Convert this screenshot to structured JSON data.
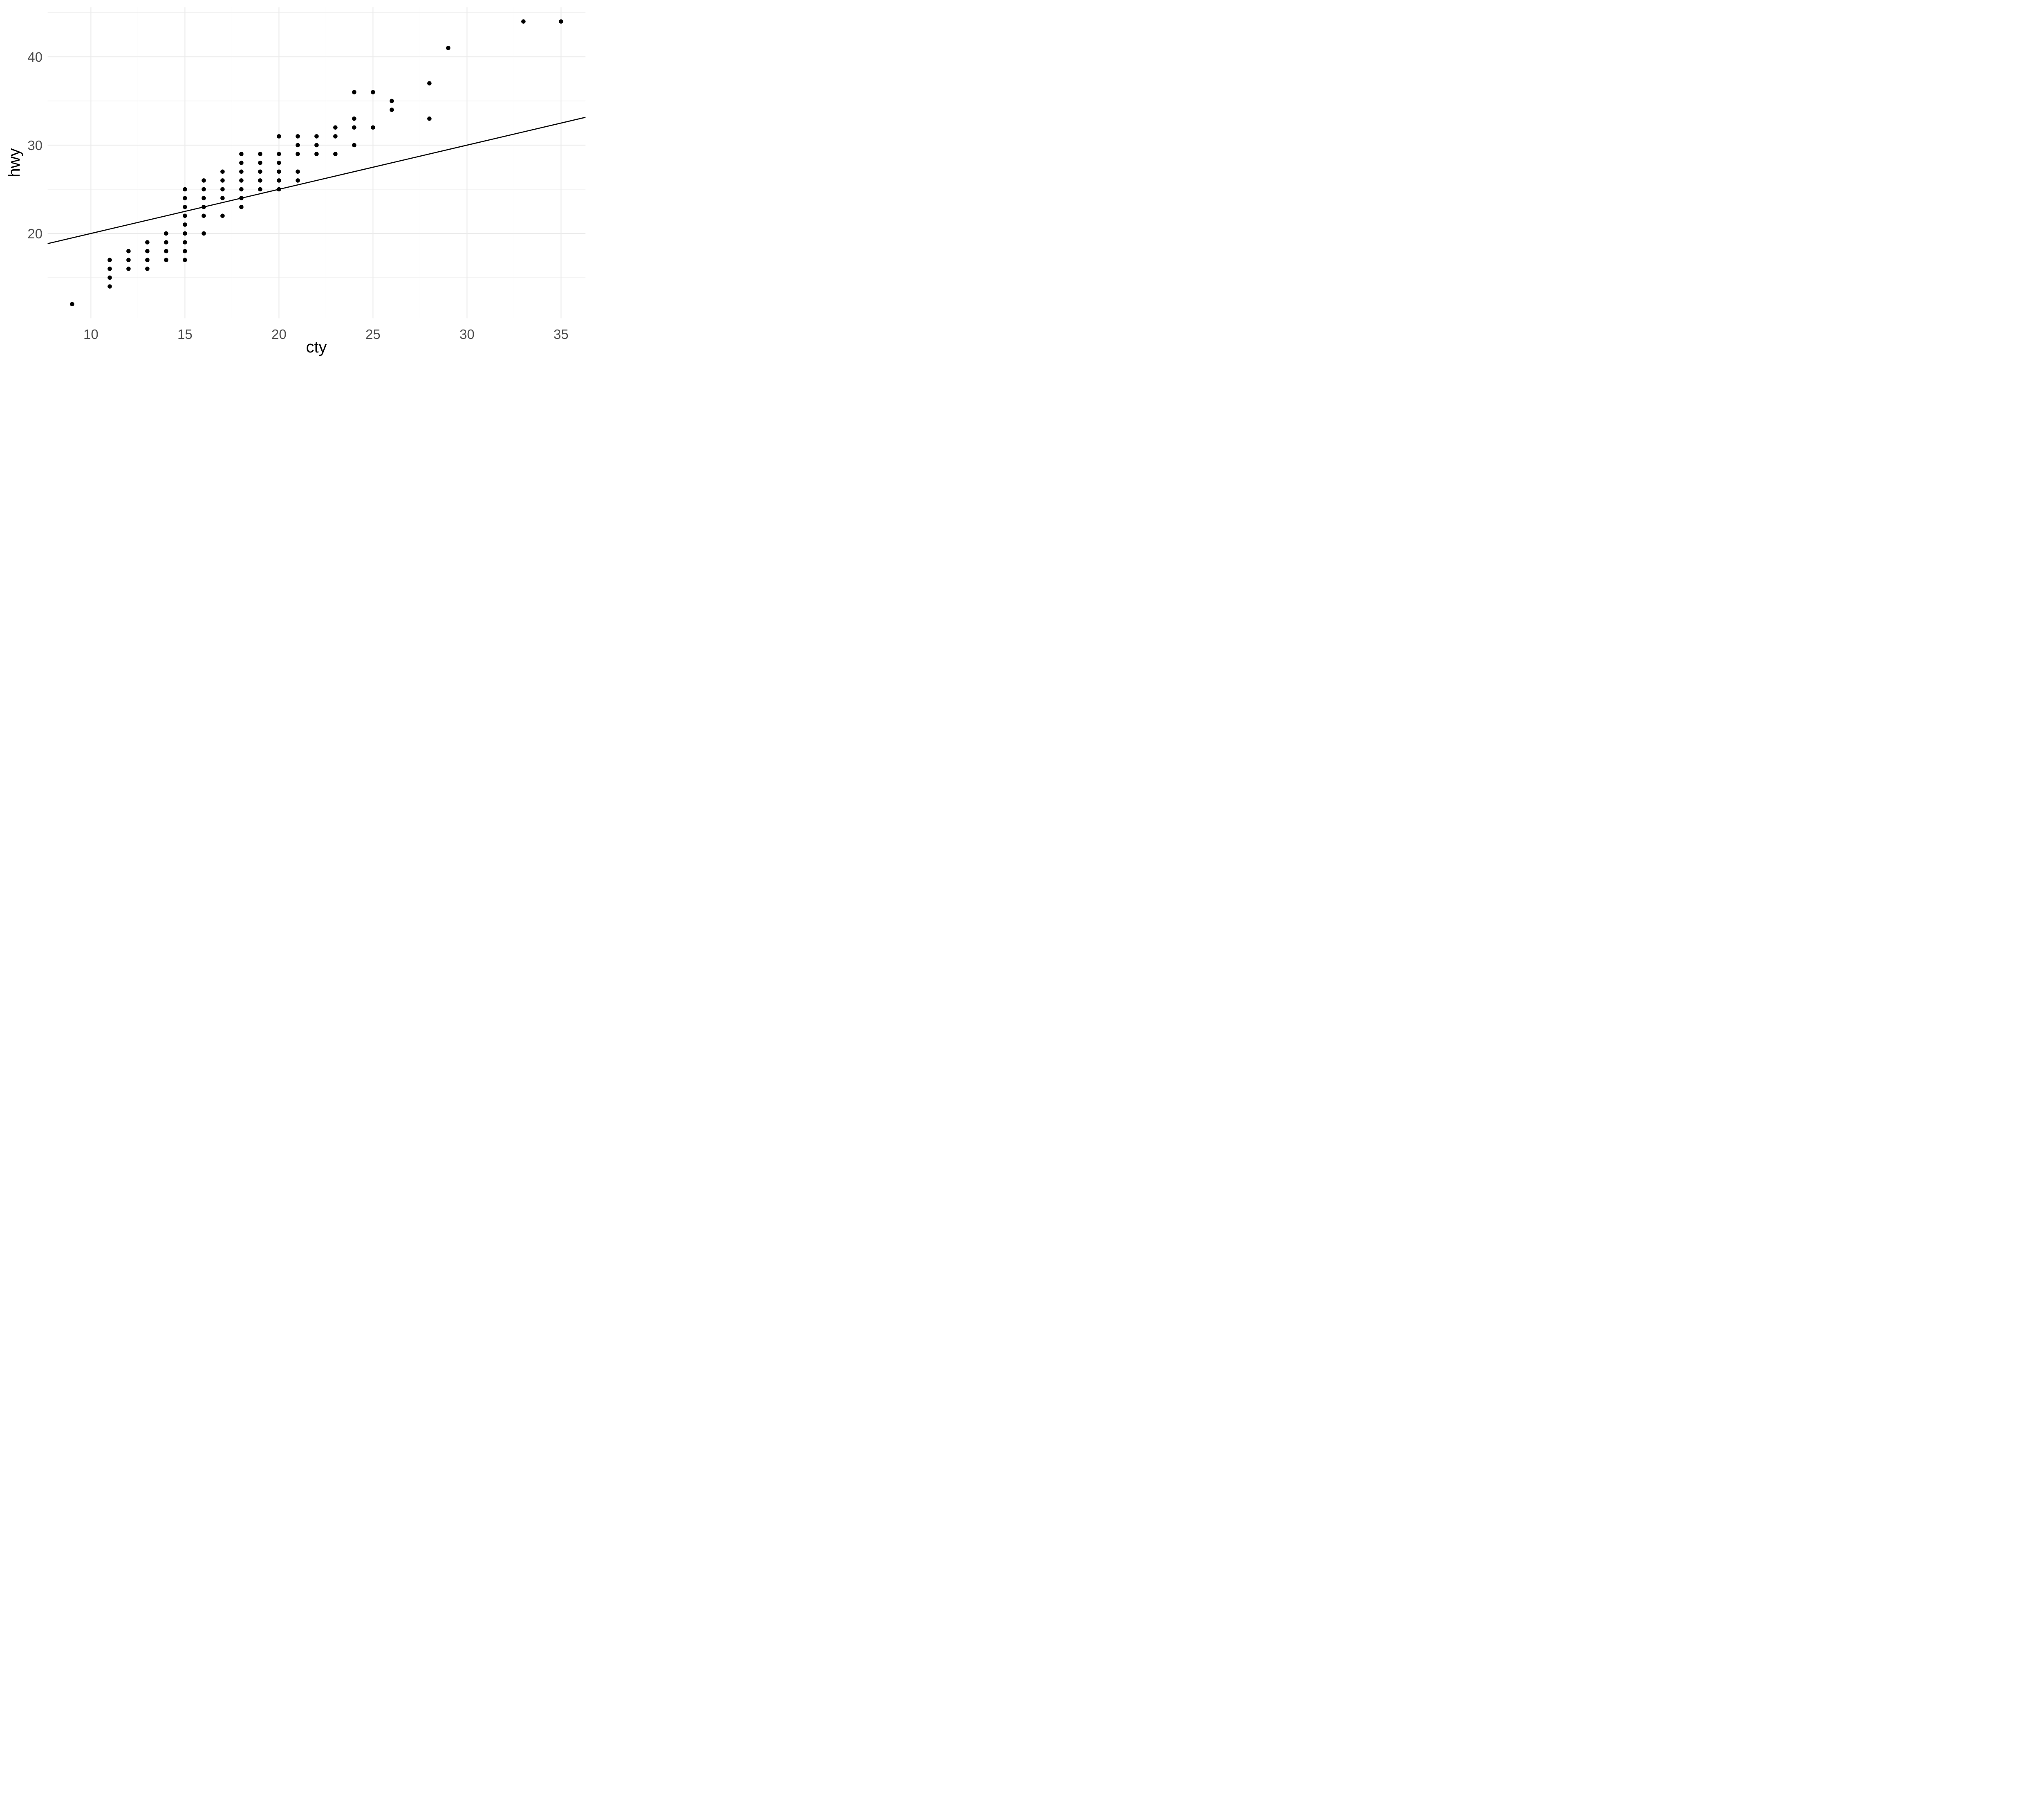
{
  "chart_data": {
    "type": "scatter",
    "title": "",
    "xlabel": "cty",
    "ylabel": "hwy",
    "xlim": [
      7.7,
      36.3
    ],
    "ylim": [
      10.4,
      45.6
    ],
    "x_major_ticks": [
      10,
      15,
      20,
      25,
      30,
      35
    ],
    "y_major_ticks": [
      20,
      30,
      40
    ],
    "x_minor_gridlines": [
      12.5,
      17.5,
      22.5,
      27.5,
      32.5
    ],
    "y_minor_gridlines": [
      15,
      25,
      35,
      45
    ],
    "grid": "major-and-minor, no axis lines, no tick marks",
    "legend": "none",
    "points": [
      [
        9,
        12
      ],
      [
        11,
        14
      ],
      [
        11,
        15
      ],
      [
        11,
        16
      ],
      [
        11,
        17
      ],
      [
        12,
        16
      ],
      [
        12,
        17
      ],
      [
        12,
        18
      ],
      [
        13,
        16
      ],
      [
        13,
        17
      ],
      [
        13,
        18
      ],
      [
        13,
        19
      ],
      [
        14,
        17
      ],
      [
        14,
        18
      ],
      [
        14,
        19
      ],
      [
        14,
        20
      ],
      [
        15,
        17
      ],
      [
        15,
        18
      ],
      [
        15,
        19
      ],
      [
        15,
        20
      ],
      [
        15,
        21
      ],
      [
        15,
        22
      ],
      [
        15,
        23
      ],
      [
        15,
        24
      ],
      [
        15,
        25
      ],
      [
        16,
        20
      ],
      [
        16,
        22
      ],
      [
        16,
        23
      ],
      [
        16,
        24
      ],
      [
        16,
        25
      ],
      [
        16,
        26
      ],
      [
        17,
        22
      ],
      [
        17,
        24
      ],
      [
        17,
        25
      ],
      [
        17,
        26
      ],
      [
        17,
        27
      ],
      [
        18,
        23
      ],
      [
        18,
        24
      ],
      [
        18,
        25
      ],
      [
        18,
        26
      ],
      [
        18,
        27
      ],
      [
        18,
        28
      ],
      [
        18,
        29
      ],
      [
        19,
        25
      ],
      [
        19,
        26
      ],
      [
        19,
        27
      ],
      [
        19,
        28
      ],
      [
        19,
        29
      ],
      [
        20,
        25
      ],
      [
        20,
        26
      ],
      [
        20,
        27
      ],
      [
        20,
        28
      ],
      [
        20,
        29
      ],
      [
        20,
        31
      ],
      [
        21,
        26
      ],
      [
        21,
        27
      ],
      [
        21,
        29
      ],
      [
        21,
        30
      ],
      [
        21,
        31
      ],
      [
        22,
        29
      ],
      [
        22,
        30
      ],
      [
        22,
        31
      ],
      [
        23,
        29
      ],
      [
        23,
        31
      ],
      [
        23,
        32
      ],
      [
        24,
        30
      ],
      [
        24,
        32
      ],
      [
        24,
        33
      ],
      [
        24,
        36
      ],
      [
        25,
        32
      ],
      [
        25,
        36
      ],
      [
        26,
        34
      ],
      [
        26,
        35
      ],
      [
        28,
        33
      ],
      [
        28,
        37
      ],
      [
        29,
        41
      ],
      [
        33,
        44
      ],
      [
        35,
        44
      ]
    ],
    "abline": {
      "slope": 0.5,
      "intercept": 15
    },
    "colors": {
      "background": "#ffffff",
      "grid": "#ebebeb",
      "point": "#000000",
      "line": "#000000",
      "tick_label": "#4d4d4d",
      "axis_title": "#000000"
    }
  }
}
